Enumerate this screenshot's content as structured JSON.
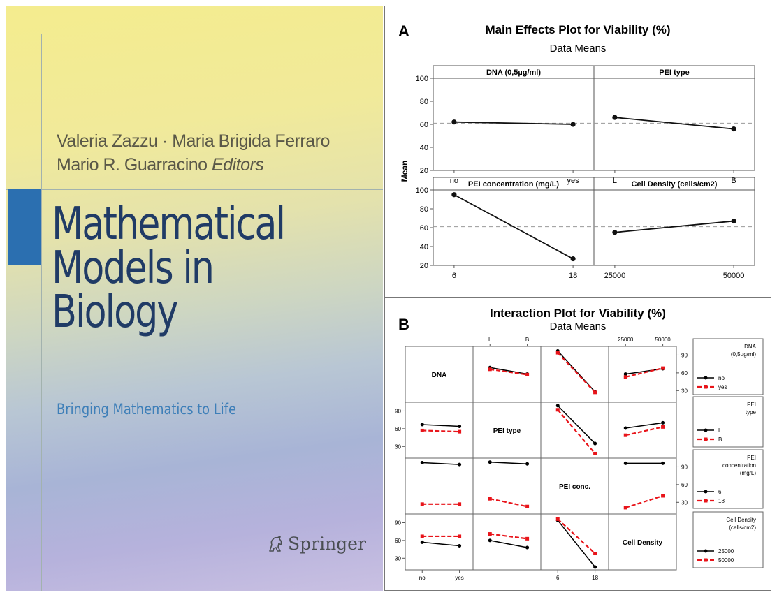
{
  "cover": {
    "authors_line1": "Valeria Zazzu · Maria Brigida Ferraro",
    "authors_line2": "Mario R. Guarracino",
    "editors": "Editors",
    "title_lines": [
      "Mathematical",
      "Models in",
      "Biology"
    ],
    "subtitle": "Bringing Mathematics to Life",
    "publisher": "Springer",
    "publisher_icon": "springer-horse-icon"
  },
  "chart_data": [
    {
      "type": "line",
      "panel_letter": "A",
      "title": "Main Effects Plot for Viability (%)",
      "subtitle": "Data Means",
      "ylabel": "Mean",
      "ylim": [
        20,
        100
      ],
      "yticks": [
        20,
        40,
        60,
        80,
        100
      ],
      "reference_line": 61,
      "panels": [
        {
          "title": "DNA (0,5µg/ml)",
          "categories": [
            "no",
            "yes"
          ],
          "values": [
            62,
            60
          ]
        },
        {
          "title": "PEI type",
          "categories": [
            "L",
            "B"
          ],
          "values": [
            66,
            56
          ]
        },
        {
          "title": "PEI concentration (mg/L)",
          "categories": [
            "6",
            "18"
          ],
          "values": [
            95,
            27
          ]
        },
        {
          "title": "Cell Density (cells/cm2)",
          "categories": [
            "25000",
            "50000"
          ],
          "values": [
            55,
            67
          ]
        }
      ]
    },
    {
      "type": "line",
      "panel_letter": "B",
      "title": "Interaction Plot for Viability (%)",
      "subtitle": "Data Means",
      "ylim": [
        15,
        100
      ],
      "yticks": [
        30,
        60,
        90
      ],
      "factors": [
        {
          "label": "DNA",
          "levels": [
            "no",
            "yes"
          ]
        },
        {
          "label": "PEI type",
          "levels": [
            "L",
            "B"
          ]
        },
        {
          "label": "PEI conc.",
          "levels": [
            "6",
            "18"
          ]
        },
        {
          "label": "Cell Density",
          "levels": [
            "25000",
            "50000"
          ]
        }
      ],
      "cells": [
        {
          "row": 0,
          "col": 1,
          "series": [
            [
              69,
              58
            ],
            [
              66,
              57
            ]
          ]
        },
        {
          "row": 0,
          "col": 2,
          "series": [
            [
              97,
              28
            ],
            [
              94,
              27
            ]
          ]
        },
        {
          "row": 0,
          "col": 3,
          "series": [
            [
              58,
              67
            ],
            [
              53,
              68
            ]
          ]
        },
        {
          "row": 1,
          "col": 0,
          "series": [
            [
              67,
              64
            ],
            [
              57,
              55
            ]
          ]
        },
        {
          "row": 1,
          "col": 2,
          "series": [
            [
              99,
              35
            ],
            [
              92,
              18
            ]
          ]
        },
        {
          "row": 1,
          "col": 3,
          "series": [
            [
              61,
              70
            ],
            [
              49,
              63
            ]
          ]
        },
        {
          "row": 2,
          "col": 0,
          "series": [
            [
              97,
              94
            ],
            [
              27,
              27
            ]
          ]
        },
        {
          "row": 2,
          "col": 1,
          "series": [
            [
              98,
              95
            ],
            [
              36,
              23
            ]
          ]
        },
        {
          "row": 2,
          "col": 3,
          "series": [
            [
              96,
              96
            ],
            [
              21,
              41
            ]
          ]
        },
        {
          "row": 3,
          "col": 0,
          "series": [
            [
              57,
              51
            ],
            [
              67,
              67
            ]
          ]
        },
        {
          "row": 3,
          "col": 1,
          "series": [
            [
              60,
              48
            ],
            [
              71,
              63
            ]
          ]
        },
        {
          "row": 3,
          "col": 2,
          "series": [
            [
              94,
              15
            ],
            [
              96,
              38
            ]
          ]
        }
      ],
      "legends": [
        {
          "title": [
            "DNA",
            "(0,5µg/ml)"
          ],
          "entries": [
            "no",
            "yes"
          ]
        },
        {
          "title": [
            "PEI",
            "type"
          ],
          "entries": [
            "L",
            "B"
          ]
        },
        {
          "title": [
            "PEI",
            "concentration",
            "(mg/L)"
          ],
          "entries": [
            "6",
            "18"
          ]
        },
        {
          "title": [
            "Cell Density",
            "(cells/cm2)"
          ],
          "entries": [
            "25000",
            "50000"
          ]
        }
      ],
      "colors": {
        "level1": "#000000",
        "level2": "#e8141a"
      }
    }
  ]
}
